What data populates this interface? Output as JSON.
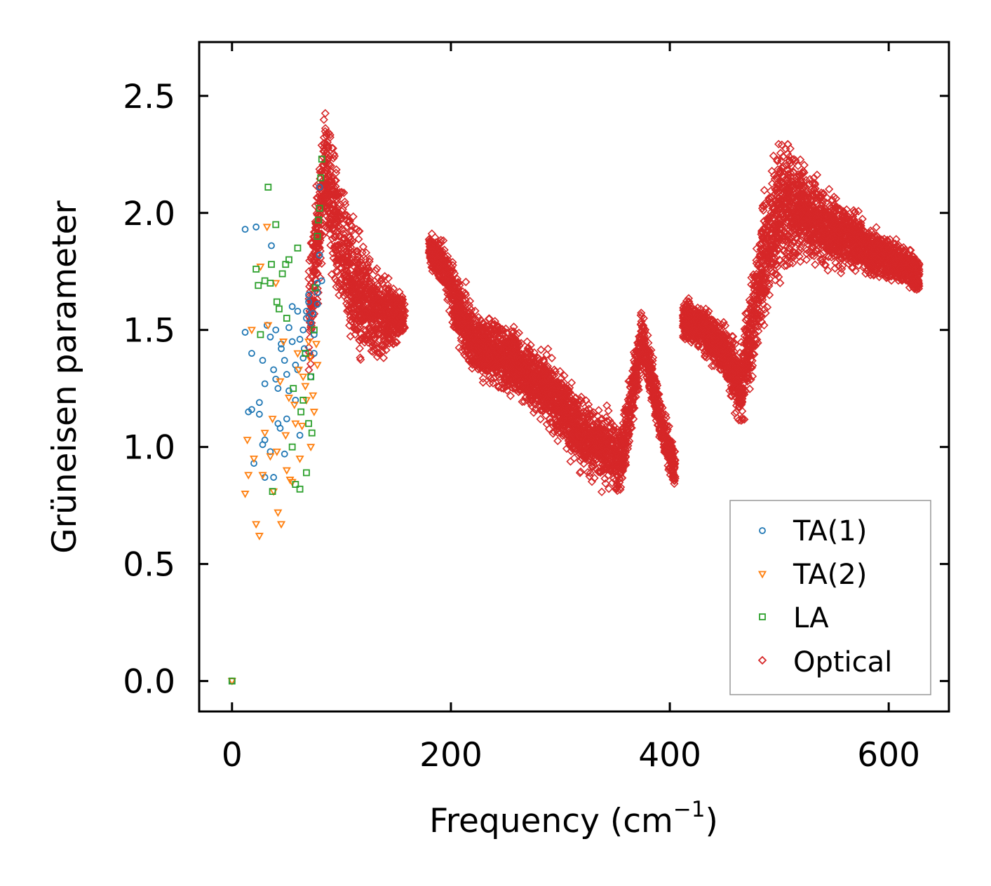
{
  "chart_data": {
    "type": "scatter",
    "title": "",
    "xlabel": "Frequency (cm",
    "xlabel_sup": "−1",
    "xlabel_close": ")",
    "ylabel": "Grüneisen parameter",
    "xlim": [
      -30,
      655
    ],
    "ylim": [
      -0.13,
      2.73
    ],
    "xticks": [
      0,
      200,
      400,
      600
    ],
    "xtick_labels": [
      "0",
      "200",
      "400",
      "600"
    ],
    "yticks": [
      0.0,
      0.5,
      1.0,
      1.5,
      2.0,
      2.5
    ],
    "ytick_labels": [
      "0.0",
      "0.5",
      "1.0",
      "1.5",
      "2.0",
      "2.5"
    ],
    "grid": false,
    "legend_position": "bottom-right",
    "series": [
      {
        "name": "TA(1)",
        "marker": "circle",
        "color": "#1f77b4",
        "x": [
          0,
          12,
          15,
          18,
          22,
          25,
          28,
          30,
          32,
          35,
          38,
          40,
          42,
          45,
          48,
          50,
          52,
          55,
          58,
          60,
          62,
          65,
          68,
          70,
          72,
          75,
          78,
          80,
          12,
          18,
          28,
          30,
          35,
          38,
          40,
          42,
          45,
          48,
          50,
          55,
          58,
          62,
          65,
          68,
          70,
          72,
          75,
          78,
          80,
          82,
          20,
          25,
          30,
          36,
          44,
          52,
          60,
          66,
          74,
          78
        ],
        "y": [
          0.0,
          1.93,
          1.15,
          1.16,
          1.94,
          1.19,
          1.37,
          1.27,
          1.52,
          1.47,
          1.33,
          1.29,
          1.1,
          1.42,
          1.37,
          1.12,
          1.51,
          1.45,
          1.2,
          1.58,
          1.05,
          1.38,
          1.55,
          1.62,
          1.3,
          1.48,
          1.7,
          1.82,
          1.49,
          1.4,
          1.01,
          1.03,
          0.98,
          0.87,
          1.5,
          1.25,
          1.44,
          0.97,
          1.31,
          1.6,
          1.35,
          1.46,
          1.5,
          1.58,
          1.65,
          1.53,
          1.4,
          1.66,
          2.11,
          1.71,
          0.93,
          1.14,
          0.87,
          1.86,
          1.08,
          1.24,
          1.33,
          1.42,
          1.57,
          1.61
        ]
      },
      {
        "name": "TA(2)",
        "marker": "triangle-down",
        "color": "#ff7f0e",
        "x": [
          0,
          12,
          14,
          18,
          22,
          25,
          28,
          30,
          32,
          35,
          38,
          40,
          42,
          45,
          47,
          50,
          52,
          55,
          58,
          60,
          62,
          65,
          68,
          70,
          72,
          75,
          78,
          15,
          20,
          26,
          33,
          37,
          41,
          44,
          49,
          53,
          57,
          61,
          64,
          67,
          71,
          74,
          77
        ],
        "y": [
          0.0,
          0.8,
          1.03,
          1.5,
          0.67,
          0.62,
          0.88,
          1.06,
          1.94,
          0.96,
          0.81,
          1.7,
          0.72,
          0.67,
          1.45,
          0.9,
          1.21,
          0.85,
          1.1,
          1.4,
          0.95,
          1.3,
          1.2,
          1.45,
          1.0,
          1.15,
          1.35,
          0.88,
          0.95,
          1.77,
          1.52,
          1.12,
          0.98,
          1.28,
          1.05,
          0.86,
          1.18,
          1.33,
          1.09,
          1.26,
          1.38,
          1.22,
          1.44
        ]
      },
      {
        "name": "LA",
        "marker": "square",
        "color": "#2ca02c",
        "x": [
          0,
          22,
          26,
          30,
          33,
          35,
          37,
          40,
          43,
          46,
          49,
          52,
          55,
          58,
          60,
          62,
          65,
          68,
          70,
          72,
          75,
          78,
          80,
          82,
          24,
          36,
          41,
          50,
          56,
          63,
          67,
          73,
          76,
          79,
          81
        ],
        "y": [
          0.0,
          1.76,
          1.48,
          1.71,
          2.11,
          1.7,
          0.81,
          1.95,
          1.59,
          1.74,
          1.78,
          1.8,
          1.0,
          0.84,
          1.85,
          0.82,
          1.2,
          0.89,
          1.1,
          1.3,
          1.5,
          1.9,
          2.02,
          2.23,
          1.69,
          1.78,
          1.62,
          1.55,
          1.25,
          1.15,
          1.4,
          1.06,
          1.68,
          1.97,
          2.15
        ]
      },
      {
        "name": "Optical",
        "marker": "diamond",
        "color": "#d62728",
        "clusters": [
          {
            "x_range": [
              70,
              158
            ],
            "center_y": [
              [
                70,
                1.55
              ],
              [
                80,
                1.95
              ],
              [
                85,
                2.2
              ],
              [
                92,
                2.0
              ],
              [
                100,
                1.85
              ],
              [
                110,
                1.7
              ],
              [
                120,
                1.62
              ],
              [
                130,
                1.58
              ],
              [
                140,
                1.56
              ],
              [
                150,
                1.57
              ],
              [
                158,
                1.55
              ]
            ],
            "spread": [
              [
                70,
                0.4
              ],
              [
                85,
                0.35
              ],
              [
                100,
                0.38
              ],
              [
                120,
                0.3
              ],
              [
                140,
                0.22
              ],
              [
                158,
                0.12
              ]
            ]
          },
          {
            "x_range": [
              180,
              405
            ],
            "center_y": [
              [
                180,
                1.85
              ],
              [
                195,
                1.75
              ],
              [
                205,
                1.6
              ],
              [
                220,
                1.45
              ],
              [
                240,
                1.4
              ],
              [
                260,
                1.35
              ],
              [
                280,
                1.28
              ],
              [
                300,
                1.18
              ],
              [
                320,
                1.05
              ],
              [
                340,
                1.0
              ],
              [
                355,
                0.95
              ],
              [
                365,
                1.2
              ],
              [
                375,
                1.48
              ],
              [
                385,
                1.25
              ],
              [
                395,
                1.05
              ],
              [
                405,
                0.9
              ]
            ],
            "spread": [
              [
                180,
                0.08
              ],
              [
                210,
                0.2
              ],
              [
                260,
                0.18
              ],
              [
                320,
                0.2
              ],
              [
                355,
                0.22
              ],
              [
                375,
                0.15
              ],
              [
                405,
                0.12
              ]
            ]
          },
          {
            "x_range": [
              412,
              628
            ],
            "center_y": [
              [
                412,
                1.55
              ],
              [
                430,
                1.5
              ],
              [
                450,
                1.4
              ],
              [
                465,
                1.25
              ],
              [
                475,
                1.5
              ],
              [
                485,
                1.8
              ],
              [
                495,
                1.95
              ],
              [
                505,
                2.05
              ],
              [
                520,
                2.0
              ],
              [
                540,
                1.95
              ],
              [
                560,
                1.9
              ],
              [
                580,
                1.85
              ],
              [
                600,
                1.8
              ],
              [
                615,
                1.78
              ],
              [
                628,
                1.72
              ]
            ],
            "spread": [
              [
                412,
                0.12
              ],
              [
                450,
                0.15
              ],
              [
                475,
                0.3
              ],
              [
                505,
                0.35
              ],
              [
                540,
                0.22
              ],
              [
                580,
                0.14
              ],
              [
                628,
                0.1
              ]
            ]
          }
        ]
      }
    ]
  }
}
